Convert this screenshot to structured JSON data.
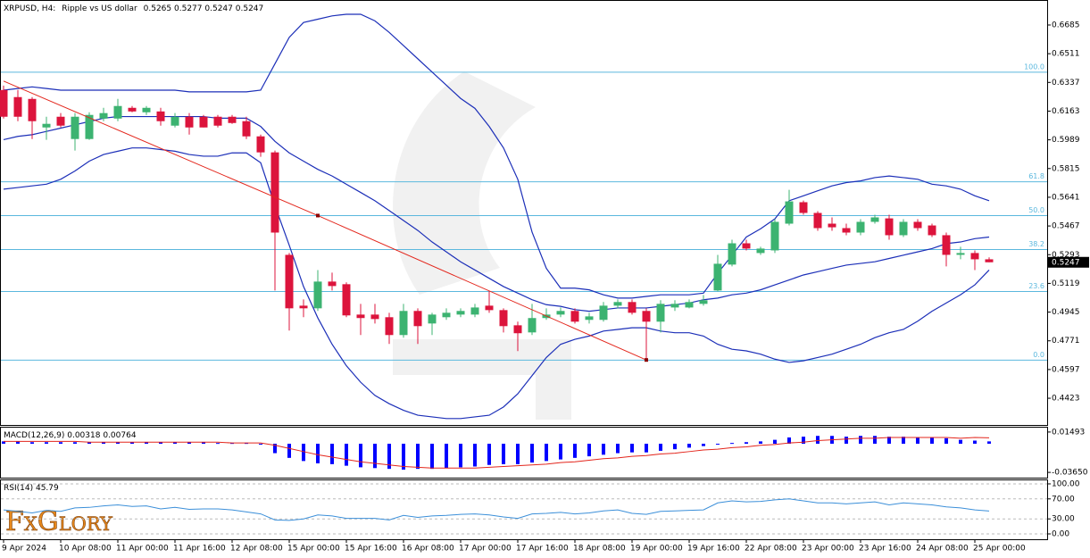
{
  "logo": "FxGlory",
  "chart_data": [
    {
      "type": "candlestick",
      "symbol": "XRPUSD, H4:",
      "description": "Ripple vs US dollar",
      "ohlc": [
        0.5265,
        0.5277,
        0.5247,
        0.5247
      ],
      "categories": [
        "9 Apr 2024",
        null,
        null,
        null,
        "10 Apr 08:00",
        null,
        null,
        null,
        "11 Apr 00:00",
        null,
        null,
        null,
        "11 Apr 16:00",
        null,
        null,
        null,
        "12 Apr 08:00",
        null,
        null,
        null,
        "15 Apr 00:00",
        null,
        null,
        null,
        "15 Apr 16:00",
        null,
        null,
        null,
        "16 Apr 08:00",
        null,
        null,
        null,
        "17 Apr 00:00",
        null,
        null,
        null,
        "17 Apr 16:00",
        null,
        null,
        null,
        "18 Apr 08:00",
        null,
        null,
        null,
        "19 Apr 00:00",
        null,
        null,
        null,
        "19 Apr 16:00",
        null,
        null,
        null,
        "22 Apr 08:00",
        null,
        null,
        null,
        "23 Apr 00:00",
        null,
        null,
        null,
        "23 Apr 16:00",
        null,
        null,
        null,
        "24 Apr 08:00",
        null,
        null,
        null,
        "25 Apr 00:00",
        null
      ],
      "open": [
        0.6291,
        0.6248,
        0.6237,
        0.6064,
        0.6129,
        0.5994,
        0.5994,
        0.6118,
        0.6118,
        0.6183,
        0.6156,
        0.6161,
        0.6075,
        0.6129,
        0.6129,
        0.6129,
        0.6129,
        0.6102,
        0.601,
        0.5913,
        0.5292,
        0.4984,
        0.4968,
        0.513,
        0.5114,
        0.493,
        0.493,
        0.4914,
        0.4806,
        0.4952,
        0.4876,
        0.4914,
        0.493,
        0.493,
        0.4984,
        0.4957,
        0.4865,
        0.4822,
        0.4909,
        0.493,
        0.4952,
        0.4898,
        0.4898,
        0.4984,
        0.5006,
        0.4952,
        0.4887,
        0.4973,
        0.4973,
        0.4995,
        0.5076,
        0.5233,
        0.5362,
        0.5303,
        0.5319,
        0.5481,
        0.5611,
        0.5546,
        0.5481,
        0.5454,
        0.5427,
        0.5492,
        0.5513,
        0.5411,
        0.5492,
        0.547,
        0.5411,
        0.5292,
        0.5303,
        0.5265
      ],
      "high": [
        0.6318,
        0.6291,
        0.6248,
        0.6129,
        0.6151,
        0.6151,
        0.6156,
        0.6183,
        0.6237,
        0.6194,
        0.6194,
        0.6183,
        0.6151,
        0.6151,
        0.614,
        0.614,
        0.614,
        0.6129,
        0.6021,
        0.5924,
        0.5303,
        0.5022,
        0.52,
        0.5184,
        0.5125,
        0.4995,
        0.4995,
        0.4941,
        0.4995,
        0.4968,
        0.4941,
        0.4968,
        0.4968,
        0.4995,
        0.5071,
        0.4968,
        0.4887,
        0.4995,
        0.4968,
        0.4973,
        0.4968,
        0.4941,
        0.5006,
        0.5022,
        0.5022,
        0.4968,
        0.5017,
        0.5017,
        0.5022,
        0.5049,
        0.5292,
        0.5384,
        0.5384,
        0.5341,
        0.5508,
        0.5686,
        0.5621,
        0.5557,
        0.5519,
        0.5481,
        0.5508,
        0.5535,
        0.5535,
        0.5508,
        0.5508,
        0.5481,
        0.5427,
        0.5341,
        0.5319,
        0.5277
      ],
      "low": [
        0.6118,
        0.6102,
        0.5994,
        0.5989,
        0.6064,
        0.5924,
        0.5989,
        0.6102,
        0.6102,
        0.6156,
        0.614,
        0.6075,
        0.6064,
        0.6021,
        0.6064,
        0.6064,
        0.6086,
        0.5994,
        0.5886,
        0.5076,
        0.4833,
        0.4914,
        0.4952,
        0.5076,
        0.4914,
        0.4806,
        0.4876,
        0.4752,
        0.479,
        0.4752,
        0.4806,
        0.4898,
        0.4914,
        0.4914,
        0.4941,
        0.4822,
        0.4709,
        0.4806,
        0.4898,
        0.4914,
        0.4876,
        0.4876,
        0.4887,
        0.4968,
        0.493,
        0.4655,
        0.4822,
        0.4952,
        0.4968,
        0.4984,
        0.5071,
        0.5222,
        0.5319,
        0.5292,
        0.5303,
        0.547,
        0.5535,
        0.5438,
        0.5438,
        0.5411,
        0.5411,
        0.5481,
        0.5384,
        0.54,
        0.5438,
        0.54,
        0.5222,
        0.5265,
        0.52,
        0.5247
      ],
      "close": [
        0.6129,
        0.6129,
        0.6102,
        0.6086,
        0.6075,
        0.6129,
        0.614,
        0.6151,
        0.6194,
        0.6161,
        0.6183,
        0.6102,
        0.6129,
        0.6064,
        0.6064,
        0.6075,
        0.6091,
        0.601,
        0.5913,
        0.5427,
        0.4968,
        0.4968,
        0.513,
        0.5103,
        0.4925,
        0.4909,
        0.4903,
        0.4806,
        0.4952,
        0.486,
        0.493,
        0.4941,
        0.4952,
        0.4973,
        0.4957,
        0.486,
        0.4817,
        0.4909,
        0.493,
        0.4952,
        0.4887,
        0.4919,
        0.4984,
        0.5006,
        0.4941,
        0.4887,
        0.4995,
        0.4995,
        0.5006,
        0.5017,
        0.5238,
        0.5362,
        0.533,
        0.533,
        0.5492,
        0.5616,
        0.5546,
        0.5454,
        0.5459,
        0.5427,
        0.5492,
        0.5519,
        0.5411,
        0.5492,
        0.5454,
        0.5411,
        0.5292,
        0.5303,
        0.5265,
        0.5247
      ],
      "up_color": "#3cb371",
      "down_color": "#dc143c",
      "bollinger": {
        "color": "#1c2fb8",
        "upper": [
          0.629,
          0.63,
          0.631,
          0.63,
          0.629,
          0.629,
          0.629,
          0.629,
          0.629,
          0.629,
          0.629,
          0.629,
          0.629,
          0.628,
          0.628,
          0.628,
          0.628,
          0.628,
          0.629,
          0.645,
          0.661,
          0.67,
          0.672,
          0.674,
          0.675,
          0.675,
          0.671,
          0.664,
          0.656,
          0.648,
          0.64,
          0.632,
          0.624,
          0.618,
          0.607,
          0.594,
          0.575,
          0.543,
          0.521,
          0.509,
          0.509,
          0.508,
          0.505,
          0.503,
          0.503,
          0.504,
          0.505,
          0.505,
          0.505,
          0.506,
          0.518,
          0.529,
          0.54,
          0.545,
          0.551,
          0.562,
          0.565,
          0.568,
          0.571,
          0.573,
          0.574,
          0.576,
          0.577,
          0.576,
          0.575,
          0.572,
          0.571,
          0.569,
          0.565,
          0.562
        ],
        "middle": [
          0.599,
          0.601,
          0.602,
          0.604,
          0.606,
          0.608,
          0.61,
          0.612,
          0.613,
          0.613,
          0.613,
          0.613,
          0.613,
          0.613,
          0.613,
          0.612,
          0.612,
          0.612,
          0.607,
          0.598,
          0.591,
          0.586,
          0.581,
          0.577,
          0.572,
          0.567,
          0.562,
          0.556,
          0.55,
          0.544,
          0.537,
          0.531,
          0.525,
          0.52,
          0.515,
          0.51,
          0.506,
          0.502,
          0.499,
          0.498,
          0.496,
          0.495,
          0.496,
          0.497,
          0.497,
          0.497,
          0.498,
          0.499,
          0.5,
          0.502,
          0.503,
          0.505,
          0.506,
          0.508,
          0.511,
          0.514,
          0.517,
          0.519,
          0.521,
          0.523,
          0.524,
          0.525,
          0.527,
          0.529,
          0.531,
          0.533,
          0.536,
          0.537,
          0.539,
          0.54
        ],
        "lower": [
          0.569,
          0.57,
          0.571,
          0.572,
          0.575,
          0.58,
          0.586,
          0.59,
          0.592,
          0.594,
          0.594,
          0.593,
          0.592,
          0.59,
          0.589,
          0.589,
          0.591,
          0.591,
          0.585,
          0.559,
          0.535,
          0.51,
          0.491,
          0.475,
          0.462,
          0.452,
          0.444,
          0.439,
          0.435,
          0.432,
          0.431,
          0.43,
          0.43,
          0.431,
          0.432,
          0.437,
          0.445,
          0.456,
          0.467,
          0.475,
          0.478,
          0.48,
          0.483,
          0.484,
          0.485,
          0.485,
          0.483,
          0.482,
          0.482,
          0.48,
          0.475,
          0.472,
          0.471,
          0.469,
          0.466,
          0.464,
          0.465,
          0.467,
          0.469,
          0.472,
          0.475,
          0.479,
          0.482,
          0.484,
          0.489,
          0.495,
          0.5,
          0.505,
          0.511,
          0.52
        ]
      },
      "trendline": {
        "color": "#e3261c",
        "x": [
          0,
          22,
          45
        ],
        "values": [
          0.6345,
          0.553,
          0.4655
        ]
      },
      "fib_color": "#5bb8de",
      "fib_levels": [
        {
          "value": 0.6399,
          "label": "100.0"
        },
        {
          "value": 0.5735,
          "label": "61.8"
        },
        {
          "value": 0.553,
          "label": "50.0"
        },
        {
          "value": 0.5324,
          "label": "38.2"
        },
        {
          "value": 0.507,
          "label": "23.6"
        },
        {
          "value": 0.4654,
          "label": "0.0"
        }
      ],
      "last_price": 0.5247,
      "ylim": [
        0.4261,
        0.6831
      ],
      "yticks": [
        0.6685,
        0.6511,
        0.6337,
        0.6163,
        0.5989,
        0.5815,
        0.5641,
        0.5467,
        0.5293,
        0.5119,
        0.4945,
        0.4771,
        0.4597,
        0.4423
      ]
    },
    {
      "type": "macd",
      "name": "MACD(12,26,9)",
      "readout": [
        0.00318,
        0.00764
      ],
      "color": "#0000ff",
      "signal_color": "#e3261c",
      "values": [
        0.003,
        0.003,
        0.002,
        0.002,
        0.002,
        0.002,
        0.002,
        0.002,
        0.002,
        0.002,
        0.002,
        0.002,
        0.002,
        0.002,
        0.002,
        0.001,
        0.001,
        0.001,
        -0.001,
        -0.012,
        -0.018,
        -0.022,
        -0.025,
        -0.026,
        -0.028,
        -0.03,
        -0.031,
        -0.032,
        -0.033,
        -0.032,
        -0.032,
        -0.031,
        -0.03,
        -0.029,
        -0.027,
        -0.026,
        -0.026,
        -0.024,
        -0.022,
        -0.02,
        -0.018,
        -0.016,
        -0.014,
        -0.012,
        -0.011,
        -0.011,
        -0.009,
        -0.007,
        -0.005,
        -0.003,
        -0.001,
        0.001,
        0.002,
        0.003,
        0.005,
        0.008,
        0.009,
        0.01,
        0.01,
        0.009,
        0.01,
        0.01,
        0.009,
        0.009,
        0.008,
        0.008,
        0.007,
        0.005,
        0.004,
        0.003
      ],
      "signal": [
        0.003,
        0.003,
        0.003,
        0.003,
        0.003,
        0.003,
        0.002,
        0.002,
        0.002,
        0.002,
        0.002,
        0.002,
        0.002,
        0.002,
        0.002,
        0.002,
        0.001,
        0.001,
        0.001,
        -0.002,
        -0.006,
        -0.01,
        -0.014,
        -0.017,
        -0.02,
        -0.023,
        -0.025,
        -0.027,
        -0.029,
        -0.03,
        -0.031,
        -0.031,
        -0.031,
        -0.031,
        -0.03,
        -0.029,
        -0.028,
        -0.027,
        -0.026,
        -0.024,
        -0.023,
        -0.021,
        -0.019,
        -0.018,
        -0.016,
        -0.015,
        -0.013,
        -0.012,
        -0.01,
        -0.008,
        -0.007,
        -0.005,
        -0.004,
        -0.002,
        -0.001,
        0.001,
        0.002,
        0.004,
        0.005,
        0.006,
        0.007,
        0.007,
        0.008,
        0.008,
        0.008,
        0.008,
        0.008,
        0.007,
        0.008,
        0.0076
      ],
      "ylim": [
        -0.0432,
        0.0205
      ],
      "yticks": [
        0.01493,
        {
          "value": -0.0365,
          "label": "-0.03650"
        }
      ]
    },
    {
      "type": "line",
      "name": "RSI(14)",
      "readout": 45.79,
      "color": "#3b8fd9",
      "grid": true,
      "values": [
        48,
        45,
        42,
        47,
        45,
        52,
        53,
        56,
        58,
        55,
        56,
        50,
        53,
        49,
        50,
        50,
        48,
        44,
        40,
        28,
        27,
        30,
        38,
        36,
        31,
        31,
        31,
        28,
        37,
        33,
        36,
        37,
        39,
        40,
        38,
        34,
        31,
        40,
        41,
        43,
        40,
        42,
        46,
        48,
        41,
        39,
        45,
        46,
        47,
        48,
        62,
        66,
        64,
        65,
        68,
        70,
        66,
        62,
        62,
        60,
        62,
        64,
        58,
        62,
        60,
        58,
        54,
        52,
        48,
        45.79
      ],
      "ylim": [
        -10.7,
        107.1
      ],
      "yticks": [
        {
          "value": 100,
          "label": "100.00"
        },
        {
          "value": 70,
          "label": "70.00"
        },
        {
          "value": 30,
          "label": "30.00"
        },
        {
          "value": 0,
          "label": "0.00"
        }
      ]
    }
  ]
}
